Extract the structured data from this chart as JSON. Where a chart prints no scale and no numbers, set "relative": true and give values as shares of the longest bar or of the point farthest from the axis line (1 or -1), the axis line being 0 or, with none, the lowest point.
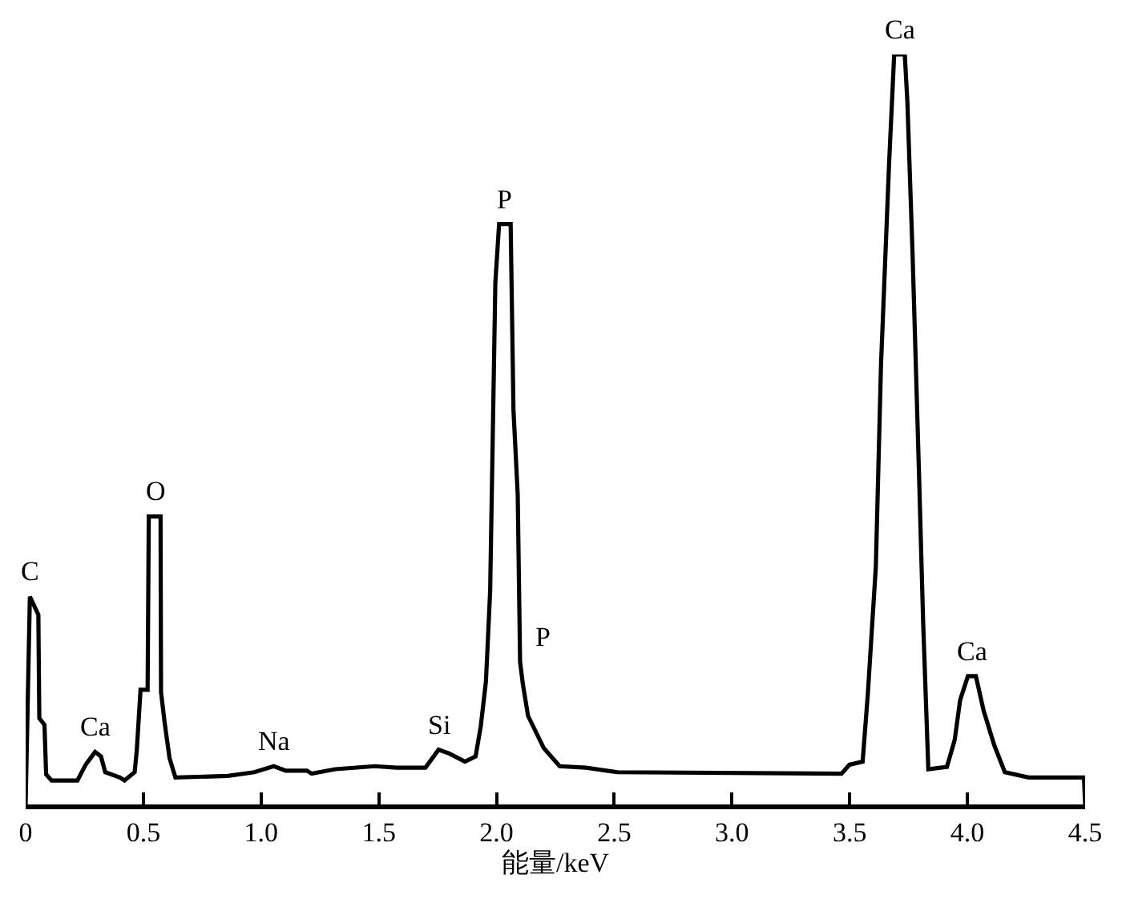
{
  "chart_data": {
    "type": "line",
    "relative": true,
    "xlabel": "能量/keV",
    "xlim": [
      0,
      4.5
    ],
    "xticks": [
      0,
      0.5,
      {
        "value": 1,
        "label": "1.0"
      },
      1.5,
      {
        "value": 2,
        "label": "2.0"
      },
      2.5,
      {
        "value": 3,
        "label": "3.0"
      },
      3.5,
      {
        "value": 4,
        "label": "4.0"
      },
      4.5
    ],
    "marker": "none",
    "line_style": "solid",
    "series": [
      {
        "color": "#000000",
        "x": [
          0,
          0.018,
          0.054,
          0.058,
          0.08,
          0.087,
          0.11,
          0.22,
          0.255,
          0.295,
          0.32,
          0.338,
          0.4,
          0.42,
          0.463,
          0.472,
          0.488,
          0.518,
          0.523,
          0.573,
          0.575,
          0.59,
          0.611,
          0.636,
          0.859,
          0.971,
          1.054,
          1.105,
          1.195,
          1.215,
          1.315,
          1.483,
          1.575,
          1.698,
          1.754,
          1.799,
          1.866,
          1.911,
          1.933,
          1.955,
          1.973,
          1.995,
          2.011,
          2.06,
          2.072,
          2.09,
          2.1,
          2.112,
          2.134,
          2.201,
          2.268,
          2.38,
          2.515,
          3.465,
          3.499,
          3.555,
          3.577,
          3.611,
          3.633,
          3.667,
          3.689,
          3.734,
          3.745,
          3.767,
          3.794,
          3.812,
          3.834,
          3.913,
          3.946,
          3.969,
          4.002,
          4.036,
          4.069,
          4.114,
          4.159,
          4.26,
          4.495,
          4.5
        ],
        "values": [
          0,
          0.277,
          0.253,
          0.115,
          0.106,
          0.04,
          0.032,
          0.032,
          0.053,
          0.07,
          0.064,
          0.043,
          0.036,
          0.032,
          0.043,
          0.072,
          0.153,
          0.153,
          0.384,
          0.384,
          0.15,
          0.11,
          0.062,
          0.036,
          0.038,
          0.043,
          0.051,
          0.045,
          0.045,
          0.041,
          0.047,
          0.051,
          0.049,
          0.049,
          0.073,
          0.068,
          0.057,
          0.064,
          0.104,
          0.164,
          0.285,
          0.696,
          0.774,
          0.774,
          0.526,
          0.413,
          0.19,
          0.16,
          0.118,
          0.075,
          0.051,
          0.049,
          0.043,
          0.041,
          0.053,
          0.057,
          0.147,
          0.317,
          0.586,
          0.852,
          1,
          1,
          0.937,
          0.735,
          0.445,
          0.243,
          0.047,
          0.05,
          0.086,
          0.139,
          0.171,
          0.171,
          0.125,
          0.079,
          0.043,
          0.036,
          0.036,
          0
        ]
      }
    ],
    "annotations": [
      {
        "text": "C",
        "x": 0.018,
        "y": 0.277
      },
      {
        "text": "Ca",
        "x": 0.295,
        "y": 0.07
      },
      {
        "text": "O",
        "x": 0.548,
        "y": 0.384
      },
      {
        "text": "Na",
        "x": 1.054,
        "y": 0.051
      },
      {
        "text": "Si",
        "x": 1.754,
        "y": 0.073
      },
      {
        "text": "P",
        "x": 2.035,
        "y": 0.774
      },
      {
        "text": "P",
        "x": 2.1,
        "y": 0.19
      },
      {
        "text": "Ca",
        "x": 3.711,
        "y": 1
      },
      {
        "text": "Ca",
        "x": 4.019,
        "y": 0.171
      }
    ]
  }
}
